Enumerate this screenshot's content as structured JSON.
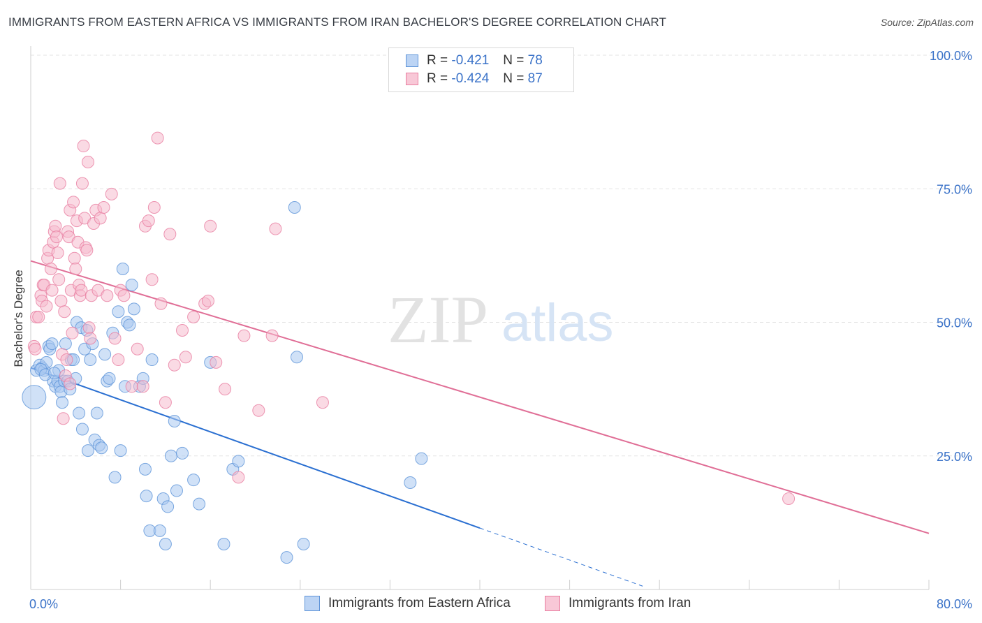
{
  "title": "IMMIGRANTS FROM EASTERN AFRICA VS IMMIGRANTS FROM IRAN BACHELOR'S DEGREE CORRELATION CHART",
  "source": "Source: ZipAtlas.com",
  "watermark": {
    "zip": "ZIP",
    "atlas": "atlas"
  },
  "legend_top": [
    {
      "r_label": "R =",
      "r_value": "-0.421",
      "n_label": "N =",
      "n_value": "78"
    },
    {
      "r_label": "R =",
      "r_value": "-0.424",
      "n_label": "N =",
      "n_value": "87"
    }
  ],
  "colors": {
    "blue_fill": "#a9c8f0",
    "blue_stroke": "#5d93d8",
    "blue_line": "#2a6fd1",
    "pink_fill": "#f6bccd",
    "pink_stroke": "#e97da0",
    "pink_line": "#e06e96",
    "grid": "#e3e3e3",
    "tick_label": "#3a72c8"
  },
  "chart_data": {
    "type": "scatter",
    "title": "IMMIGRANTS FROM EASTERN AFRICA VS IMMIGRANTS FROM IRAN BACHELOR'S DEGREE CORRELATION CHART",
    "xlabel": "",
    "ylabel": "Bachelor's Degree",
    "xlim": [
      0,
      80
    ],
    "ylim": [
      0,
      100
    ],
    "x_tick_labels": [
      "0.0%",
      "80.0%"
    ],
    "y_ticks": [
      25,
      50,
      75,
      100
    ],
    "y_tick_labels": [
      "25.0%",
      "50.0%",
      "75.0%",
      "100.0%"
    ],
    "grid": true,
    "legend_position": "bottom",
    "series": [
      {
        "name": "Immigrants from Eastern Africa",
        "r": -0.421,
        "n": 78,
        "trend": {
          "x0": 0,
          "y0": 41.5,
          "x1": 40,
          "y1": 11.5,
          "dashed_to_x": 54.5
        },
        "points": [
          [
            0.3,
            36
          ],
          [
            0.5,
            41
          ],
          [
            0.8,
            42
          ],
          [
            1,
            41.5
          ],
          [
            1.2,
            41
          ],
          [
            1.4,
            42.5
          ],
          [
            1.6,
            45.5
          ],
          [
            1.7,
            45
          ],
          [
            1.9,
            46
          ],
          [
            2,
            39
          ],
          [
            2.2,
            38
          ],
          [
            2.4,
            39
          ],
          [
            2.5,
            41
          ],
          [
            2.6,
            38
          ],
          [
            2.7,
            37
          ],
          [
            2.8,
            35
          ],
          [
            3,
            39
          ],
          [
            3.1,
            46
          ],
          [
            3.3,
            39
          ],
          [
            3.5,
            37.5
          ],
          [
            3.6,
            43
          ],
          [
            3.8,
            43
          ],
          [
            4,
            39.5
          ],
          [
            4.1,
            50
          ],
          [
            4.3,
            33
          ],
          [
            4.5,
            49
          ],
          [
            4.6,
            30
          ],
          [
            4.8,
            45
          ],
          [
            5,
            48.5
          ],
          [
            5.1,
            26
          ],
          [
            5.3,
            43
          ],
          [
            5.5,
            46
          ],
          [
            5.7,
            28
          ],
          [
            5.9,
            33
          ],
          [
            6.1,
            27
          ],
          [
            6.3,
            26.5
          ],
          [
            6.6,
            44
          ],
          [
            6.8,
            39
          ],
          [
            7,
            39.5
          ],
          [
            7.3,
            48
          ],
          [
            7.5,
            21
          ],
          [
            7.8,
            52
          ],
          [
            8,
            26
          ],
          [
            8.2,
            60
          ],
          [
            8.4,
            38
          ],
          [
            8.6,
            50
          ],
          [
            8.8,
            49.5
          ],
          [
            9,
            57
          ],
          [
            9.2,
            52.5
          ],
          [
            9.7,
            38
          ],
          [
            10,
            39.5
          ],
          [
            10.2,
            22.5
          ],
          [
            10.3,
            17.5
          ],
          [
            10.6,
            11
          ],
          [
            10.8,
            43
          ],
          [
            11.5,
            11
          ],
          [
            11.8,
            17
          ],
          [
            12,
            8.5
          ],
          [
            12.8,
            31.5
          ],
          [
            12.5,
            25
          ],
          [
            13,
            18.5
          ],
          [
            13.5,
            25.5
          ],
          [
            14.5,
            20.5
          ],
          [
            16,
            42.5
          ],
          [
            17.2,
            8.5
          ],
          [
            18,
            22.5
          ],
          [
            18.5,
            24
          ],
          [
            22.8,
            6
          ],
          [
            23.5,
            71.5
          ],
          [
            23.7,
            43.5
          ],
          [
            24.3,
            8.5
          ],
          [
            33.8,
            20
          ],
          [
            34.8,
            24.5
          ],
          [
            0.9,
            41.2
          ],
          [
            1.3,
            40.2
          ],
          [
            2.1,
            40.5
          ],
          [
            15,
            16
          ],
          [
            12.2,
            15.5
          ]
        ]
      },
      {
        "name": "Immigrants from Iran",
        "r": -0.424,
        "n": 87,
        "trend": {
          "x0": 0,
          "y0": 61.5,
          "x1": 80,
          "y1": 10.5
        },
        "points": [
          [
            0.3,
            45.5
          ],
          [
            0.5,
            51
          ],
          [
            0.7,
            51
          ],
          [
            0.9,
            55
          ],
          [
            1,
            54
          ],
          [
            1.1,
            57
          ],
          [
            1.2,
            57
          ],
          [
            1.4,
            53
          ],
          [
            1.5,
            62
          ],
          [
            1.6,
            63.5
          ],
          [
            1.8,
            60
          ],
          [
            1.9,
            56
          ],
          [
            2,
            65
          ],
          [
            2.1,
            67
          ],
          [
            2.2,
            68
          ],
          [
            2.3,
            66
          ],
          [
            2.4,
            63
          ],
          [
            2.5,
            58
          ],
          [
            2.6,
            76
          ],
          [
            2.7,
            54
          ],
          [
            2.8,
            44
          ],
          [
            2.9,
            32
          ],
          [
            3,
            52
          ],
          [
            3.1,
            40
          ],
          [
            3.2,
            43
          ],
          [
            3.3,
            67
          ],
          [
            3.4,
            66
          ],
          [
            3.5,
            71
          ],
          [
            3.6,
            56
          ],
          [
            3.7,
            48
          ],
          [
            3.8,
            72.5
          ],
          [
            3.9,
            62
          ],
          [
            4,
            60
          ],
          [
            4.1,
            69
          ],
          [
            4.2,
            65
          ],
          [
            4.3,
            57
          ],
          [
            4.4,
            55
          ],
          [
            4.5,
            56
          ],
          [
            4.6,
            76
          ],
          [
            4.7,
            83
          ],
          [
            4.8,
            69.5
          ],
          [
            4.9,
            64
          ],
          [
            5,
            63.5
          ],
          [
            5.1,
            80
          ],
          [
            5.2,
            49
          ],
          [
            5.3,
            47
          ],
          [
            5.4,
            55
          ],
          [
            5.6,
            68.5
          ],
          [
            5.8,
            71
          ],
          [
            6,
            56
          ],
          [
            6.2,
            69.5
          ],
          [
            6.5,
            71.5
          ],
          [
            6.8,
            55
          ],
          [
            7.2,
            74
          ],
          [
            7.5,
            47
          ],
          [
            7.8,
            43
          ],
          [
            8,
            56
          ],
          [
            8.3,
            55
          ],
          [
            9,
            38
          ],
          [
            9.5,
            45
          ],
          [
            10,
            38
          ],
          [
            10.2,
            68
          ],
          [
            10.5,
            69
          ],
          [
            10.8,
            58
          ],
          [
            11,
            71.5
          ],
          [
            11.3,
            84.5
          ],
          [
            11.6,
            53.5
          ],
          [
            12,
            35
          ],
          [
            12.4,
            66.5
          ],
          [
            12.8,
            42
          ],
          [
            13.5,
            48.5
          ],
          [
            13.8,
            43.5
          ],
          [
            14.5,
            51
          ],
          [
            15.5,
            53.5
          ],
          [
            15.8,
            54
          ],
          [
            16,
            68
          ],
          [
            16.5,
            42.5
          ],
          [
            17.3,
            37.5
          ],
          [
            18.5,
            21
          ],
          [
            19,
            47.5
          ],
          [
            20.3,
            33.5
          ],
          [
            21.5,
            47.5
          ],
          [
            21.8,
            67.5
          ],
          [
            26,
            35
          ],
          [
            67.5,
            17
          ],
          [
            0.4,
            45
          ],
          [
            3.5,
            38.5
          ]
        ]
      }
    ]
  }
}
